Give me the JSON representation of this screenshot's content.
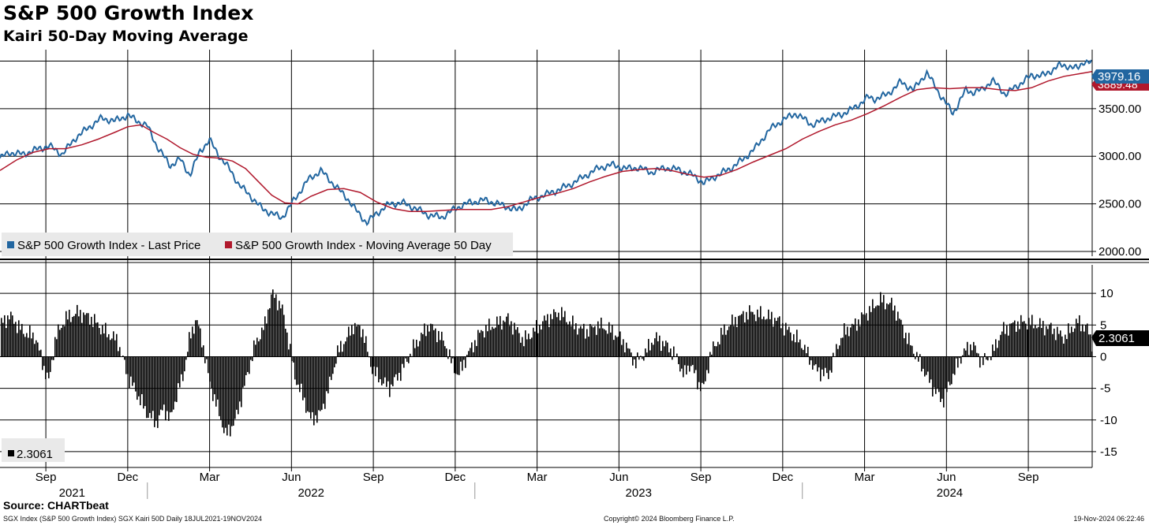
{
  "header": {
    "title": "S&P 500 Growth Index",
    "subtitle": "Kairi 50-Day Moving Average"
  },
  "footer": {
    "source": "Source: CHARTbeat",
    "description": "SGX Index (S&P 500 Growth Index) SGX Kairi 50D  Daily 18JUL2021-19NOV2024",
    "copyright": "Copyright© 2024 Bloomberg Finance L.P.",
    "timestamp": "19-Nov-2024 06:22:46"
  },
  "colors": {
    "price": "#2266a0",
    "moving_average": "#b0182c",
    "kairi_bars": "#000000",
    "grid": "#000000",
    "legend_bg": "#e9e9e9"
  },
  "chart_data": [
    {
      "type": "line",
      "title": "S&P 500 Growth Index",
      "ylim": [
        1950,
        4120
      ],
      "yticks": [
        2000,
        2500,
        3000,
        3500
      ],
      "ytick_labels": [
        "2000.00",
        "2500.00",
        "3000.00",
        "3500.00"
      ],
      "last_labels": {
        "price": "3979.16",
        "moving_average": "3889.48"
      },
      "legend": [
        "S&P 500 Growth Index - Last Price",
        "S&P 500 Growth Index - Moving Average 50 Day"
      ],
      "time_range": [
        2021.55,
        2024.885
      ],
      "series": [
        {
          "name": "S&P 500 Growth Index - Last Price",
          "t": [
            2021.55,
            2021.58,
            2021.62,
            2021.66,
            2021.7,
            2021.74,
            2021.78,
            2021.82,
            2021.86,
            2021.9,
            2021.94,
            2021.98,
            2022.0,
            2022.03,
            2022.07,
            2022.1,
            2022.13,
            2022.16,
            2022.19,
            2022.22,
            2022.25,
            2022.28,
            2022.31,
            2022.35,
            2022.38,
            2022.41,
            2022.45,
            2022.49,
            2022.53,
            2022.57,
            2022.61,
            2022.64,
            2022.67,
            2022.7,
            2022.74,
            2022.78,
            2022.82,
            2022.86,
            2022.9,
            2022.94,
            2022.98,
            2023.03,
            2023.08,
            2023.13,
            2023.17,
            2023.21,
            2023.25,
            2023.29,
            2023.33,
            2023.38,
            2023.42,
            2023.46,
            2023.5,
            2023.54,
            2023.58,
            2023.62,
            2023.66,
            2023.7,
            2023.74,
            2023.78,
            2023.82,
            2023.86,
            2023.9,
            2023.94,
            2023.98,
            2024.03,
            2024.08,
            2024.12,
            2024.16,
            2024.2,
            2024.22,
            2024.26,
            2024.3,
            2024.34,
            2024.38,
            2024.42,
            2024.46,
            2024.5,
            2024.52,
            2024.55,
            2024.58,
            2024.62,
            2024.66,
            2024.7,
            2024.74,
            2024.78,
            2024.81,
            2024.84,
            2024.86,
            2024.885
          ],
          "values": [
            2980,
            3040,
            3020,
            3070,
            3110,
            3020,
            3190,
            3300,
            3400,
            3370,
            3430,
            3350,
            3320,
            3100,
            2900,
            2970,
            2800,
            3050,
            3170,
            3000,
            2870,
            2700,
            2600,
            2450,
            2400,
            2350,
            2550,
            2750,
            2850,
            2700,
            2560,
            2420,
            2300,
            2400,
            2500,
            2510,
            2450,
            2380,
            2360,
            2450,
            2510,
            2540,
            2490,
            2430,
            2540,
            2590,
            2640,
            2700,
            2780,
            2880,
            2910,
            2870,
            2880,
            2830,
            2880,
            2860,
            2810,
            2720,
            2800,
            2870,
            2970,
            3100,
            3280,
            3380,
            3450,
            3330,
            3400,
            3440,
            3510,
            3620,
            3600,
            3650,
            3780,
            3700,
            3880,
            3650,
            3450,
            3700,
            3670,
            3700,
            3800,
            3650,
            3750,
            3850,
            3850,
            3950,
            3950,
            3920,
            4000,
            3979.16
          ]
        },
        {
          "name": "S&P 500 Growth Index - Moving Average 50 Day",
          "t": [
            2021.55,
            2021.6,
            2021.65,
            2021.7,
            2021.75,
            2021.8,
            2021.85,
            2021.9,
            2021.94,
            2021.98,
            2022.02,
            2022.06,
            2022.1,
            2022.14,
            2022.18,
            2022.22,
            2022.26,
            2022.3,
            2022.34,
            2022.38,
            2022.42,
            2022.46,
            2022.5,
            2022.55,
            2022.6,
            2022.65,
            2022.7,
            2022.75,
            2022.8,
            2022.85,
            2022.9,
            2022.95,
            2023.0,
            2023.05,
            2023.1,
            2023.15,
            2023.2,
            2023.25,
            2023.3,
            2023.35,
            2023.4,
            2023.45,
            2023.5,
            2023.55,
            2023.6,
            2023.65,
            2023.7,
            2023.75,
            2023.8,
            2023.85,
            2023.9,
            2023.95,
            2024.0,
            2024.05,
            2024.1,
            2024.15,
            2024.2,
            2024.25,
            2024.3,
            2024.35,
            2024.4,
            2024.45,
            2024.5,
            2024.55,
            2024.6,
            2024.65,
            2024.7,
            2024.75,
            2024.8,
            2024.85,
            2024.885
          ],
          "values": [
            2850,
            2960,
            3040,
            3080,
            3080,
            3120,
            3180,
            3250,
            3310,
            3330,
            3250,
            3180,
            3090,
            3020,
            2990,
            2980,
            2950,
            2870,
            2730,
            2590,
            2510,
            2500,
            2580,
            2650,
            2660,
            2620,
            2520,
            2450,
            2420,
            2420,
            2430,
            2440,
            2440,
            2440,
            2470,
            2520,
            2570,
            2610,
            2660,
            2730,
            2790,
            2840,
            2860,
            2870,
            2850,
            2810,
            2780,
            2800,
            2860,
            2940,
            3010,
            3080,
            3180,
            3260,
            3330,
            3380,
            3450,
            3530,
            3620,
            3700,
            3720,
            3710,
            3720,
            3720,
            3700,
            3690,
            3720,
            3790,
            3840,
            3870,
            3889.48
          ]
        }
      ]
    },
    {
      "type": "bar",
      "title": "Kairi 50-Day Moving Average",
      "ylim": [
        -17.5,
        14.5
      ],
      "yticks": [
        -15,
        -10,
        -5,
        0,
        5,
        10
      ],
      "ytick_labels": [
        "-15",
        "-10",
        "-5",
        "0",
        "5",
        "10"
      ],
      "last_label": "2.3061",
      "legend": [
        "2.3061"
      ],
      "series": [
        {
          "name": "SGX Kairi 50D",
          "t": [
            2021.55,
            2021.58,
            2021.62,
            2021.66,
            2021.68,
            2021.7,
            2021.72,
            2021.75,
            2021.79,
            2021.83,
            2021.87,
            2021.91,
            2021.94,
            2021.97,
            2022.0,
            2022.03,
            2022.05,
            2022.07,
            2022.09,
            2022.11,
            2022.13,
            2022.15,
            2022.17,
            2022.19,
            2022.22,
            2022.24,
            2022.27,
            2022.3,
            2022.33,
            2022.36,
            2022.38,
            2022.41,
            2022.43,
            2022.45,
            2022.48,
            2022.5,
            2022.53,
            2022.56,
            2022.58,
            2022.61,
            2022.63,
            2022.66,
            2022.68,
            2022.7,
            2022.72,
            2022.74,
            2022.78,
            2022.82,
            2022.86,
            2022.89,
            2022.91,
            2022.93,
            2022.95,
            2022.98,
            2023.02,
            2023.06,
            2023.1,
            2023.13,
            2023.15,
            2023.18,
            2023.22,
            2023.26,
            2023.3,
            2023.34,
            2023.38,
            2023.42,
            2023.46,
            2023.49,
            2023.52,
            2023.55,
            2023.58,
            2023.61,
            2023.64,
            2023.66,
            2023.68,
            2023.7,
            2023.72,
            2023.76,
            2023.8,
            2023.84,
            2023.88,
            2023.92,
            2023.96,
            2024.0,
            2024.04,
            2024.08,
            2024.11,
            2024.13,
            2024.16,
            2024.2,
            2024.24,
            2024.28,
            2024.32,
            2024.36,
            2024.4,
            2024.43,
            2024.46,
            2024.49,
            2024.52,
            2024.55,
            2024.58,
            2024.61,
            2024.64,
            2024.68,
            2024.72,
            2024.76,
            2024.8,
            2024.84,
            2024.87,
            2024.885
          ],
          "values": [
            5,
            6.5,
            4,
            3,
            -1,
            -4,
            3,
            6,
            7,
            6,
            4,
            2.5,
            -3,
            -6,
            -9,
            -10.5,
            -8,
            -10,
            -6,
            -3,
            3,
            6,
            2,
            -4,
            -9,
            -12.5,
            -10,
            -4,
            2,
            5,
            10,
            8,
            3,
            -3,
            -7,
            -10,
            -9,
            -4,
            0.5,
            3,
            5,
            4,
            -1,
            -3,
            -4,
            -5,
            -2,
            2,
            5,
            3.5,
            2,
            -1,
            -3,
            0.5,
            4,
            5,
            6,
            4,
            2.5,
            4,
            6,
            7,
            5,
            4,
            5,
            4,
            2,
            -1,
            0.5,
            3,
            2,
            0.5,
            -3,
            -1,
            -4,
            -5,
            0.5,
            4,
            6,
            7,
            6.5,
            6,
            4,
            2,
            -2,
            -3,
            2,
            4,
            5,
            7,
            9,
            8,
            3,
            -1,
            -5,
            -7,
            -3,
            0.5,
            2,
            -1,
            0.5,
            4,
            5,
            5.5,
            5,
            4.5,
            3,
            5.5,
            4.5,
            2.3061
          ]
        }
      ]
    }
  ],
  "x_axis": {
    "months": [
      {
        "label": "Sep",
        "t": 2021.69
      },
      {
        "label": "Dec",
        "t": 2021.94
      },
      {
        "label": "Mar",
        "t": 2022.19
      },
      {
        "label": "Jun",
        "t": 2022.44
      },
      {
        "label": "Sep",
        "t": 2022.69
      },
      {
        "label": "Dec",
        "t": 2022.94
      },
      {
        "label": "Mar",
        "t": 2023.19
      },
      {
        "label": "Jun",
        "t": 2023.44
      },
      {
        "label": "Sep",
        "t": 2023.69
      },
      {
        "label": "Dec",
        "t": 2023.94
      },
      {
        "label": "Mar",
        "t": 2024.19
      },
      {
        "label": "Jun",
        "t": 2024.44
      },
      {
        "label": "Sep",
        "t": 2024.69
      }
    ],
    "years": [
      {
        "label": "2021",
        "t": 2021.77
      },
      {
        "label": "2022",
        "t": 2022.5
      },
      {
        "label": "2023",
        "t": 2023.5
      },
      {
        "label": "2024",
        "t": 2024.45
      }
    ],
    "year_starts": [
      2022.0,
      2023.0,
      2024.0
    ]
  }
}
